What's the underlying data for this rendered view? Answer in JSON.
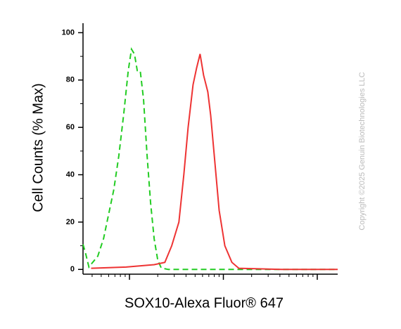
{
  "chart_data": {
    "type": "line",
    "x_label": "SOX10-Alexa Fluor® 647",
    "y_label": "Cell Counts (% Max)",
    "watermark": "Copyright ©2025 Genuin Biotechnologies LLC",
    "x_log": true,
    "xlim": [
      32,
      16500
    ],
    "xticks": [
      100,
      1000,
      10000
    ],
    "ylim": [
      -2,
      104
    ],
    "yticks": [
      0,
      20,
      40,
      60,
      80,
      100
    ],
    "series": [
      {
        "color": "#22cc22",
        "dashed": true,
        "x": [
          32,
          34,
          37,
          40,
          46,
          53,
          59,
          68,
          77,
          87,
          97,
          105,
          113,
          121,
          130,
          141,
          154,
          168,
          183,
          200,
          218,
          259,
          733,
          4140,
          16500
        ],
        "values": [
          10.6,
          7,
          1,
          2.7,
          5.6,
          13,
          22,
          33.6,
          48,
          66,
          84,
          93,
          91,
          84,
          84,
          72,
          48,
          28,
          13,
          4,
          0.6,
          0,
          0,
          0,
          0
        ]
      },
      {
        "color": "#ee3333",
        "dashed": false,
        "x": [
          39,
          92,
          183,
          238,
          282,
          336,
          379,
          421,
          475,
          518,
          565,
          616,
          683,
          733,
          813,
          902,
          1036,
          1231,
          1462,
          4140,
          16500
        ],
        "values": [
          0.5,
          1,
          2,
          3,
          10,
          20,
          40,
          60,
          78,
          85,
          91,
          82,
          75,
          65,
          45,
          25,
          10,
          3,
          0.5,
          0,
          0
        ]
      }
    ]
  }
}
